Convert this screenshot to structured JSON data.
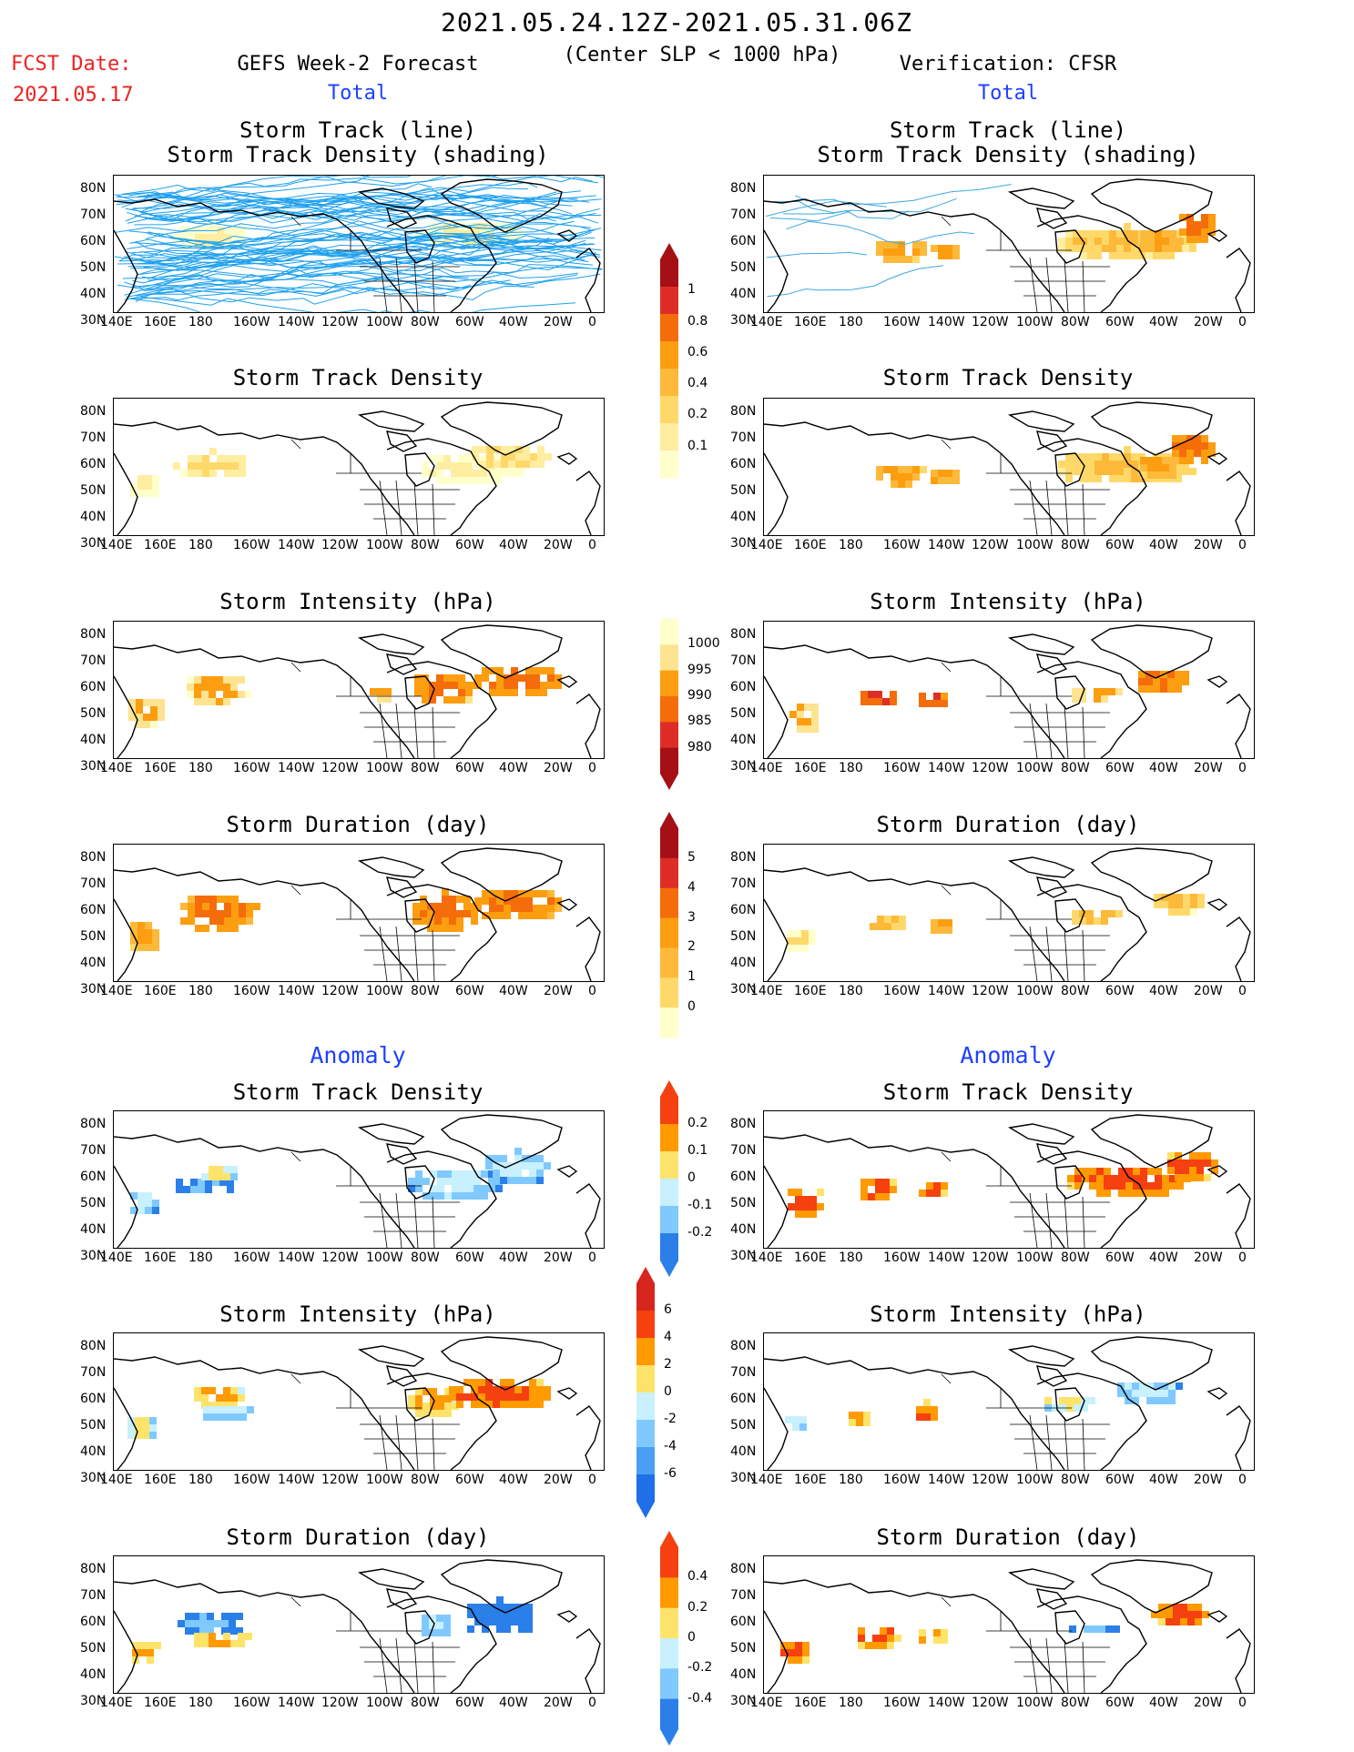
{
  "header": {
    "period": "2021.05.24.12Z-2021.05.31.06Z",
    "criterion": "(Center SLP < 1000 hPa)",
    "fcst_label": "FCST Date:",
    "fcst_date": "2021.05.17",
    "left_title": "GEFS Week-2 Forecast",
    "right_title": "Verification: CFSR",
    "total_label": "Total",
    "anomaly_label": "Anomaly"
  },
  "axes": {
    "lon_labels": [
      "140E",
      "160E",
      "180",
      "160W",
      "140W",
      "120W",
      "100W",
      "80W",
      "60W",
      "40W",
      "20W",
      "0"
    ],
    "lat_labels": [
      "80N",
      "70N",
      "60N",
      "50N",
      "40N",
      "30N"
    ]
  },
  "panels": {
    "track": {
      "title_line1": "Storm Track (line)",
      "title_line2": "Storm Track Density (shading)"
    },
    "density": {
      "title": "Storm Track Density"
    },
    "intensity": {
      "title": "Storm Intensity (hPa)"
    },
    "duration": {
      "title": "Storm Duration (day)"
    }
  },
  "colorbars": {
    "density_total": {
      "labels": [
        "1",
        "0.8",
        "0.6",
        "0.4",
        "0.2",
        "0.1"
      ],
      "colors": [
        "#a50f15",
        "#de2d26",
        "#f46d0a",
        "#fd9d10",
        "#fdb93a",
        "#fed96a",
        "#ffeda0",
        "#ffffcc"
      ]
    },
    "intensity_total": {
      "labels": [
        "1000",
        "995",
        "990",
        "985",
        "980"
      ],
      "colors": [
        "#ffffcc",
        "#fee391",
        "#fd9d10",
        "#f46d0a",
        "#de2d26",
        "#a50f15"
      ]
    },
    "duration_total": {
      "labels": [
        "5",
        "4",
        "3",
        "2",
        "1",
        "0"
      ],
      "colors": [
        "#a50f15",
        "#de2d26",
        "#f46d0a",
        "#fd9d10",
        "#fdb93a",
        "#fed96a",
        "#ffffcc"
      ]
    },
    "density_anom": {
      "labels": [
        "0.2",
        "0.1",
        "0",
        "-0.1",
        "-0.2"
      ],
      "colors": [
        "#f5400f",
        "#ff9a00",
        "#fde36a",
        "#c8f0ff",
        "#7fc9ff",
        "#2a7fe8"
      ]
    },
    "intensity_anom": {
      "labels": [
        "6",
        "4",
        "2",
        "0",
        "-2",
        "-4",
        "-6"
      ],
      "colors": [
        "#d7261e",
        "#f5400f",
        "#ff9a00",
        "#fde36a",
        "#c8f0ff",
        "#7fc9ff",
        "#4a9ff5",
        "#1f6fe8"
      ]
    },
    "duration_anom": {
      "labels": [
        "0.4",
        "0.2",
        "0",
        "-0.2",
        "-0.4"
      ],
      "colors": [
        "#f5400f",
        "#ff9a00",
        "#fde36a",
        "#c8f0ff",
        "#7fc9ff",
        "#2a7fe8"
      ]
    }
  }
}
